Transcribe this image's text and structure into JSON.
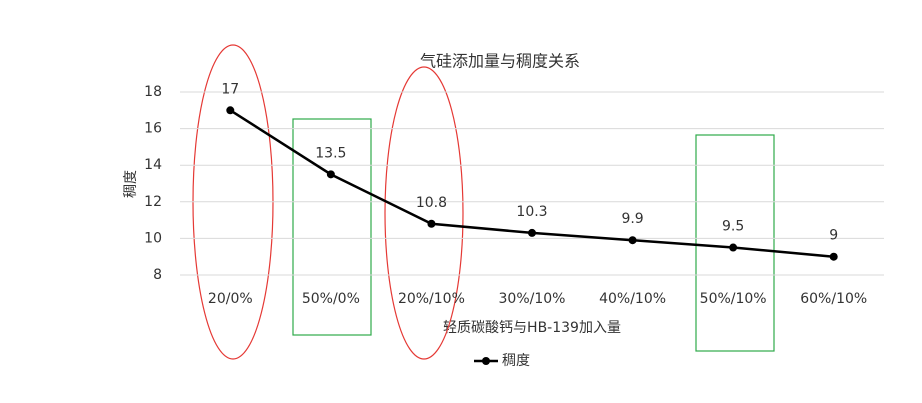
{
  "chart_data": {
    "type": "line",
    "title": "气硅添加量与稠度关系",
    "x_label": "轻质碳酸钙与HB-139加入量",
    "y_label": "稠度",
    "categories": [
      "20/0%",
      "50%/0%",
      "20%/10%",
      "30%/10%",
      "40%/10%",
      "50%/10%",
      "60%/10%"
    ],
    "series": [
      {
        "name": "稠度",
        "color": "#000000",
        "values": [
          17,
          13.5,
          10.8,
          10.3,
          9.9,
          9.5,
          9
        ]
      }
    ],
    "ylim": [
      8,
      18
    ],
    "yticks": [
      8,
      10,
      12,
      14,
      16,
      18
    ],
    "grid": true,
    "legend": "bottom",
    "data_labels": true
  }
}
